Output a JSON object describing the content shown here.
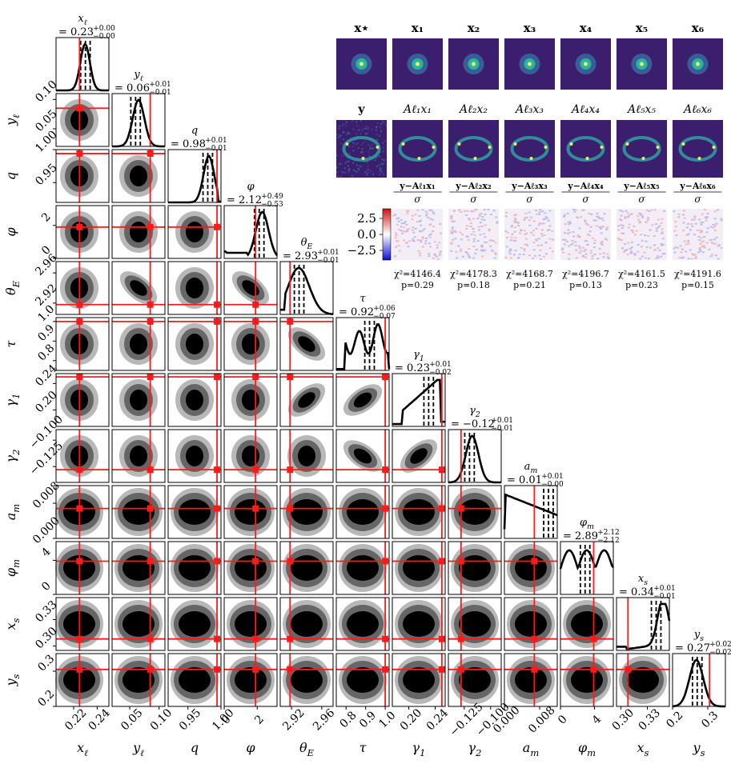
{
  "chart_data": {
    "type": "corner",
    "title": "",
    "params": [
      {
        "label": "x_ℓ",
        "sym": "x",
        "sub": "ℓ",
        "value": "0.23",
        "plus": "0.00",
        "minus": "0.00",
        "truth": 0.225,
        "range": [
          0.205,
          0.25
        ],
        "ticks": [
          "0.22",
          "0.24"
        ],
        "tickvals": [
          0.22,
          0.24
        ]
      },
      {
        "label": "y_ℓ",
        "sym": "y",
        "sub": "ℓ",
        "value": "0.06",
        "plus": "0.01",
        "minus": "0.01",
        "truth": 0.085,
        "range": [
          0.02,
          0.11
        ],
        "ticks": [
          "0.05",
          "0.10"
        ],
        "tickvals": [
          0.05,
          0.1
        ]
      },
      {
        "label": "q",
        "sym": "q",
        "sub": "",
        "value": "0.98",
        "plus": "0.01",
        "minus": "0.01",
        "truth": 0.994,
        "range": [
          0.92,
          1.0
        ],
        "ticks": [
          "0.95",
          "1.00"
        ],
        "tickvals": [
          0.95,
          1.0
        ]
      },
      {
        "label": "φ",
        "sym": "φ",
        "sub": "",
        "value": "2.12",
        "plus": "0.49",
        "minus": "0.53",
        "truth": 1.9,
        "range": [
          0.0,
          3.2
        ],
        "ticks": [
          "0",
          "2"
        ],
        "tickvals": [
          0,
          2
        ]
      },
      {
        "label": "θ_E",
        "sym": "θ",
        "sub": "E",
        "value": "2.93",
        "plus": "0.01",
        "minus": "0.01",
        "truth": 2.918,
        "range": [
          2.905,
          2.975
        ],
        "ticks": [
          "2.92",
          "2.96"
        ],
        "tickvals": [
          2.92,
          2.96
        ]
      },
      {
        "label": "τ",
        "sym": "τ",
        "sub": "",
        "value": "0.92",
        "plus": "0.06",
        "minus": "0.07",
        "truth": 1.0,
        "range": [
          0.75,
          1.02
        ],
        "ticks": [
          "0.8",
          "0.9",
          "1.0"
        ],
        "tickvals": [
          0.8,
          0.9,
          1.0
        ]
      },
      {
        "label": "γ_1",
        "sym": "γ",
        "sub": "1",
        "value": "0.23",
        "plus": "0.01",
        "minus": "0.02",
        "truth": 0.25,
        "range": [
          0.175,
          0.255
        ],
        "ticks": [
          "0.20",
          "0.24"
        ],
        "tickvals": [
          0.2,
          0.24
        ]
      },
      {
        "label": "γ_2",
        "sym": "γ",
        "sub": "2",
        "value": "−0.12",
        "plus": "0.01",
        "minus": "0.01",
        "truth": -0.128,
        "range": [
          -0.14,
          -0.09
        ],
        "ticks": [
          "−0.125",
          "−0.100"
        ],
        "tickvals": [
          -0.125,
          -0.1
        ]
      },
      {
        "label": "a_m",
        "sym": "a",
        "sub": "m",
        "value": "0.01",
        "plus": "0.01",
        "minus": "0.00",
        "truth": 0.0068,
        "range": [
          0.0,
          0.012
        ],
        "ticks": [
          "0.000",
          "0.008"
        ],
        "tickvals": [
          0.0,
          0.008
        ]
      },
      {
        "label": "φ_m",
        "sym": "φ",
        "sub": "m",
        "value": "2.89",
        "plus": "2.12",
        "minus": "2.12",
        "truth": 3.9,
        "range": [
          0.0,
          6.2
        ],
        "ticks": [
          "0",
          "4"
        ],
        "tickvals": [
          0,
          4
        ]
      },
      {
        "label": "x_s",
        "sym": "x",
        "sub": "s",
        "value": "0.34",
        "plus": "0.01",
        "minus": "0.01",
        "truth": 0.308,
        "range": [
          0.295,
          0.355
        ],
        "ticks": [
          "0.30",
          "0.33"
        ],
        "tickvals": [
          0.3,
          0.33
        ]
      },
      {
        "label": "y_s",
        "sym": "y",
        "sub": "s",
        "value": "0.27",
        "plus": "0.02",
        "minus": "0.02",
        "truth": 0.305,
        "range": [
          0.2,
          0.35
        ],
        "ticks": [
          "0.2",
          "0.3"
        ],
        "tickvals": [
          0.2,
          0.3
        ]
      }
    ],
    "inset": {
      "top_titles": [
        "x⋆",
        "x₁",
        "x₂",
        "x₃",
        "x₄",
        "x₅",
        "x₆"
      ],
      "mid_titles": [
        "y",
        "Aℓ₁x₁",
        "Aℓ₂x₂",
        "Aℓ₃x₃",
        "Aℓ₄x₄",
        "Aℓ₅x₅",
        "Aℓ₆x₆"
      ],
      "resid_num": [
        "y−Aℓ₁x₁",
        "y−Aℓ₂x₂",
        "y−Aℓ₃x₃",
        "y−Aℓ₄x₄",
        "y−Aℓ₅x₅",
        "y−Aℓ₆x₆"
      ],
      "resid_den": "σ_η",
      "colorbar_ticks": [
        "2.5",
        "0.0",
        "−2.5"
      ],
      "colorbar_vals": [
        2.5,
        0.0,
        -2.5
      ],
      "colorbar_range": [
        -4.0,
        4.0
      ],
      "chi2": [
        "χ²=4146.4",
        "χ²=4178.3",
        "χ²=4168.7",
        "χ²=4196.7",
        "χ²=4161.5",
        "χ²=4191.6"
      ],
      "pvals": [
        "p=0.29",
        "p=0.18",
        "p=0.21",
        "p=0.13",
        "p=0.23",
        "p=0.15"
      ]
    },
    "colors": {
      "truth": "#ff1a1a",
      "dark": "#000000",
      "mid": "#666666",
      "light": "#b8b8b8",
      "viridis_bg": "#3b1f6e",
      "ring": "#2fa0a0"
    }
  }
}
